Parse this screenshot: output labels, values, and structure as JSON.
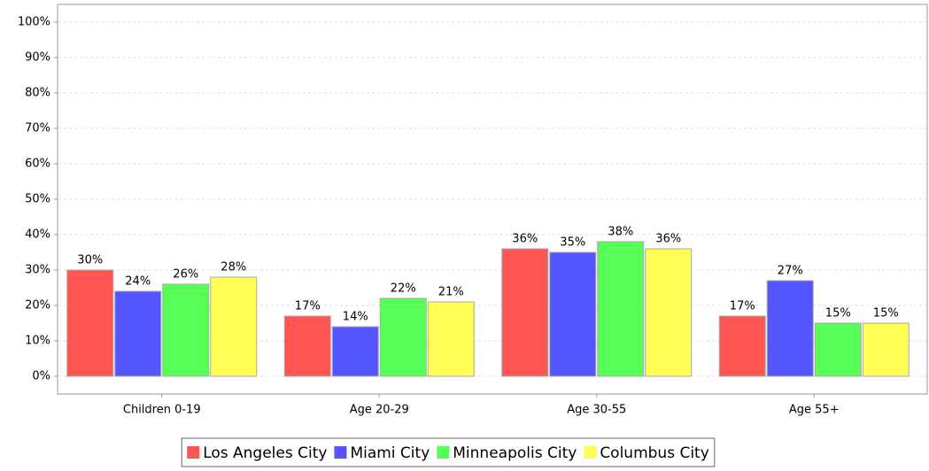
{
  "chart_data": {
    "type": "bar",
    "categories": [
      "Children 0-19",
      "Age 20-29",
      "Age 30-55",
      "Age 55+"
    ],
    "series": [
      {
        "name": "Los Angeles City",
        "color": "#ff5555",
        "values": [
          30,
          17,
          36,
          17
        ],
        "value_labels": [
          "30%",
          "17%",
          "36%",
          "17%"
        ]
      },
      {
        "name": "Miami City",
        "color": "#5555ff",
        "values": [
          24,
          14,
          35,
          27
        ],
        "value_labels": [
          "24%",
          "14%",
          "35%",
          "27%"
        ]
      },
      {
        "name": "Minneapolis City",
        "color": "#55ff55",
        "values": [
          26,
          22,
          38,
          15
        ],
        "value_labels": [
          "26%",
          "22%",
          "38%",
          "15%"
        ]
      },
      {
        "name": "Columbus City",
        "color": "#ffff55",
        "values": [
          28,
          21,
          36,
          15
        ],
        "value_labels": [
          "28%",
          "21%",
          "36%",
          "15%"
        ]
      }
    ],
    "ylim": [
      -5,
      105
    ],
    "yticks": [
      {
        "value": 0,
        "label": "0%"
      },
      {
        "value": 10,
        "label": "10%"
      },
      {
        "value": 20,
        "label": "20%"
      },
      {
        "value": 30,
        "label": "30%"
      },
      {
        "value": 40,
        "label": "40%"
      },
      {
        "value": 50,
        "label": "50%"
      },
      {
        "value": 60,
        "label": "60%"
      },
      {
        "value": 70,
        "label": "70%"
      },
      {
        "value": 80,
        "label": "80%"
      },
      {
        "value": 90,
        "label": "90%"
      },
      {
        "value": 100,
        "label": "100%"
      }
    ],
    "grid": true,
    "legend": "bottom"
  }
}
